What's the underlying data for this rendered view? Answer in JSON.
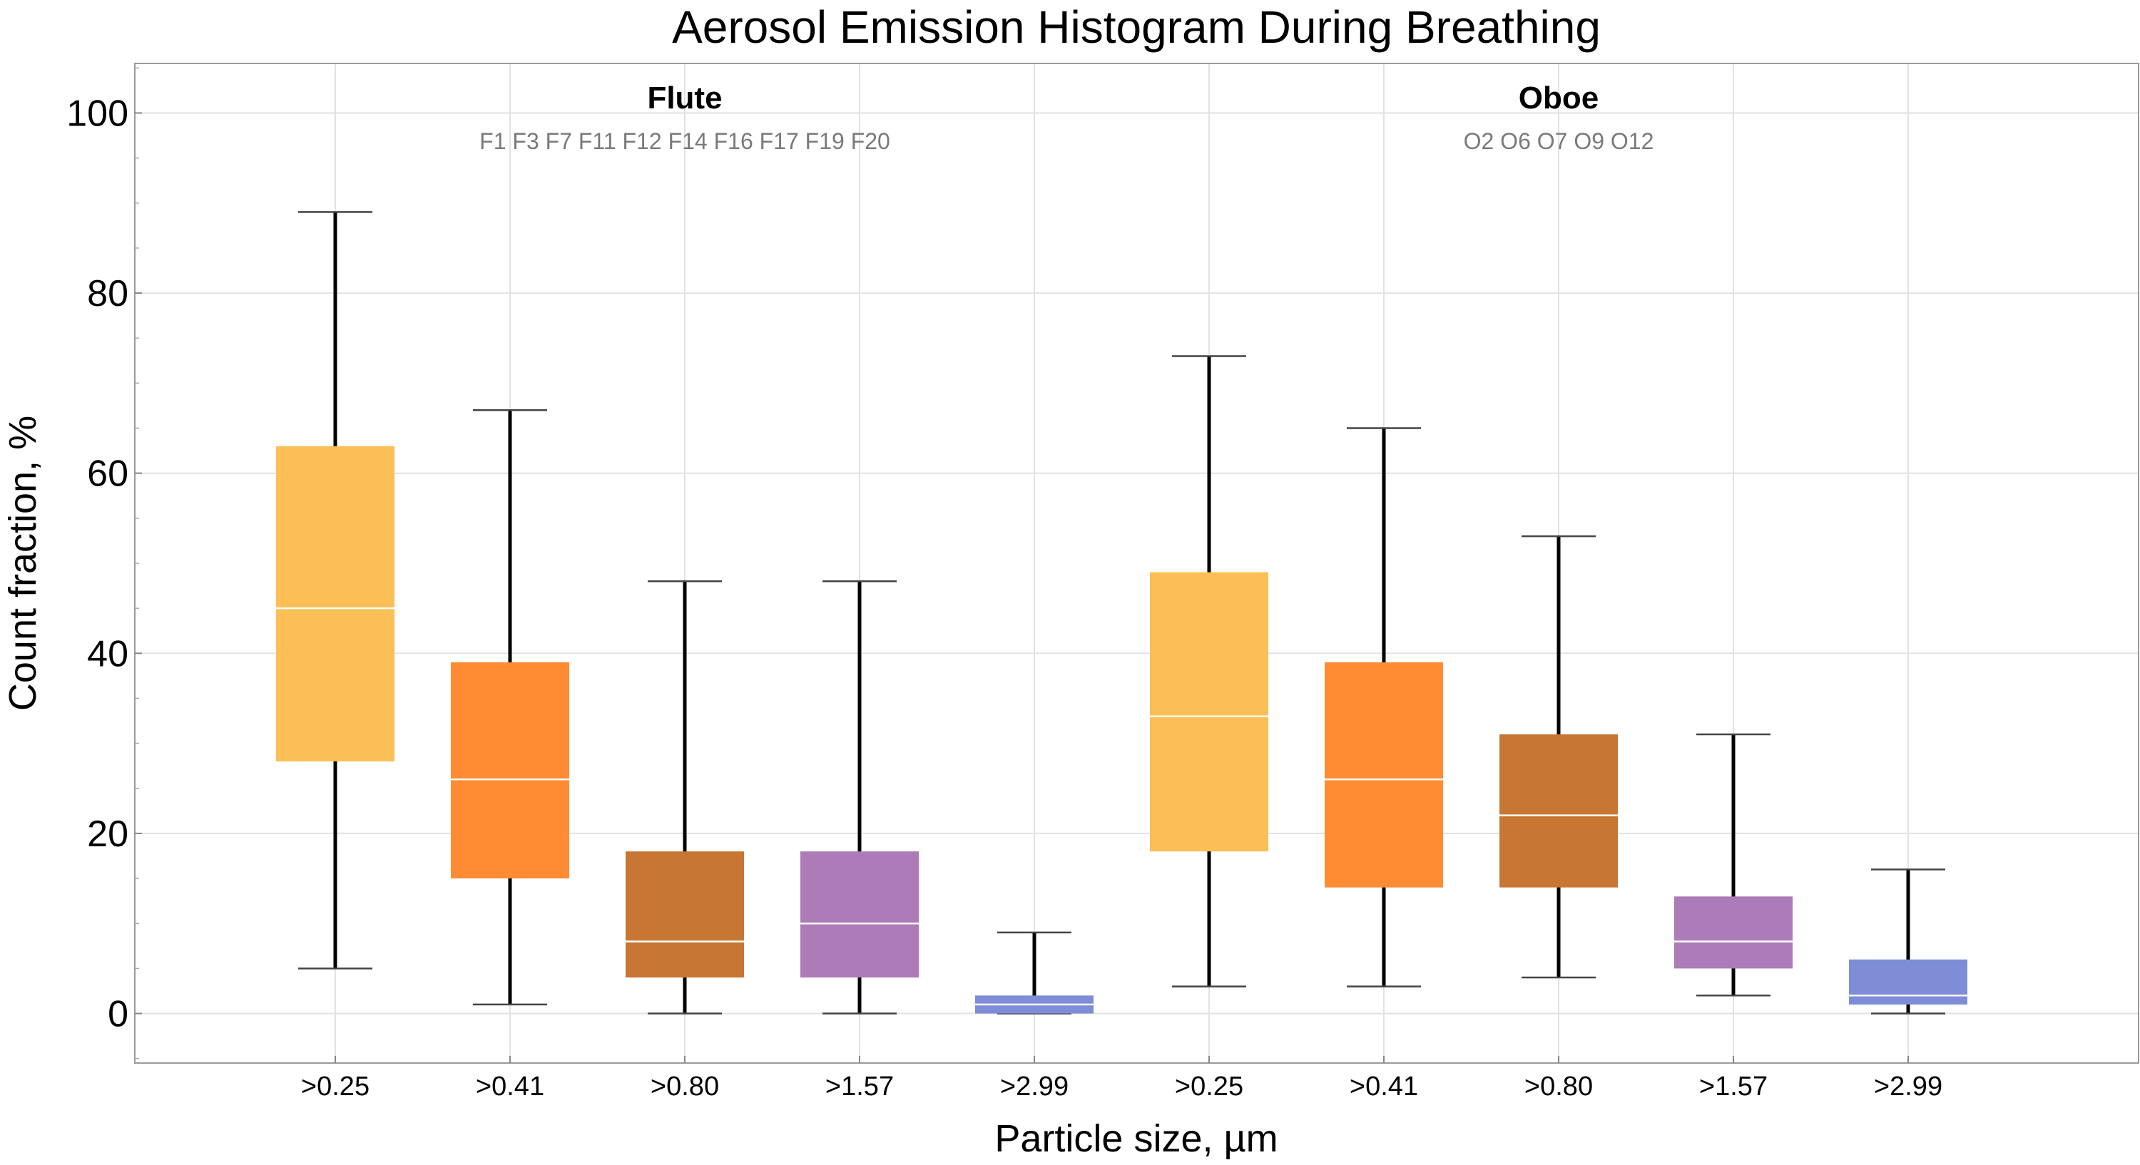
{
  "chart_data": {
    "type": "boxplot",
    "title": "Aerosol Emission Histogram During Breathing",
    "xlabel": "Particle size,  µm",
    "ylabel": "Count  fraction,  %",
    "ylim": [
      -5.5,
      105.5
    ],
    "yticks": [
      0,
      20,
      40,
      60,
      80,
      100
    ],
    "grid": true,
    "groups": [
      {
        "name": "Flute",
        "subjects": "F1 F3 F7 F11 F12 F14 F16 F17 F19 F20",
        "boxes": [
          {
            "category": ">0.25",
            "min": 5,
            "q1": 28,
            "median": 45,
            "q3": 63,
            "max": 89,
            "color": "#FBBF55"
          },
          {
            "category": ">0.41",
            "min": 1,
            "q1": 15,
            "median": 26,
            "q3": 39,
            "max": 67,
            "color": "#FF8C33"
          },
          {
            "category": ">0.80",
            "min": 0,
            "q1": 4,
            "median": 8,
            "q3": 18,
            "max": 48,
            "color": "#C77733"
          },
          {
            "category": ">1.57",
            "min": 0,
            "q1": 4,
            "median": 10,
            "q3": 18,
            "max": 48,
            "color": "#AC7BB8"
          },
          {
            "category": ">2.99",
            "min": 0,
            "q1": 0,
            "median": 1,
            "q3": 2,
            "max": 9,
            "color": "#7E8DD5"
          }
        ]
      },
      {
        "name": "Oboe",
        "subjects": "O2 O6 O7 O9 O12",
        "boxes": [
          {
            "category": ">0.25",
            "min": 3,
            "q1": 18,
            "median": 33,
            "q3": 49,
            "max": 73,
            "color": "#FBBF55"
          },
          {
            "category": ">0.41",
            "min": 3,
            "q1": 14,
            "median": 26,
            "q3": 39,
            "max": 65,
            "color": "#FF8C33"
          },
          {
            "category": ">0.80",
            "min": 4,
            "q1": 14,
            "median": 22,
            "q3": 31,
            "max": 53,
            "color": "#C77733"
          },
          {
            "category": ">1.57",
            "min": 2,
            "q1": 5,
            "median": 8,
            "q3": 13,
            "max": 31,
            "color": "#AC7BB8"
          },
          {
            "category": ">2.99",
            "min": 0,
            "q1": 1,
            "median": 2,
            "q3": 6,
            "max": 16,
            "color": "#7E8DD5"
          }
        ]
      }
    ]
  }
}
